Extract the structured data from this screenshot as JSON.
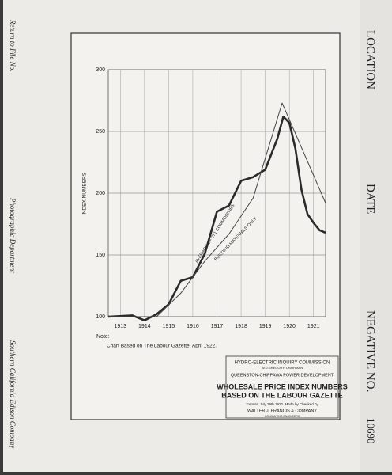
{
  "chart_data": {
    "type": "line",
    "y_label": "INDEX NUMBERS",
    "xlim": [
      1913,
      1922
    ],
    "xticks": [
      {
        "value": 1913.5,
        "label": "1913"
      },
      {
        "value": 1914.5,
        "label": "1914"
      },
      {
        "value": 1915.5,
        "label": "1915"
      },
      {
        "value": 1916.5,
        "label": "1916"
      },
      {
        "value": 1917.5,
        "label": "1917"
      },
      {
        "value": 1918.5,
        "label": "1918"
      },
      {
        "value": 1919.5,
        "label": "1919"
      },
      {
        "value": 1920.5,
        "label": "1920"
      },
      {
        "value": 1921.5,
        "label": "1921"
      }
    ],
    "ylim": [
      100,
      300
    ],
    "yticks": [
      100,
      150,
      200,
      250,
      300
    ],
    "grid": true,
    "series": [
      {
        "name": "AVERAGE OF 271 COMMODITIES",
        "color": "#2a2a2a",
        "width": 2.6,
        "x": [
          1913,
          1914,
          1914.5,
          1915,
          1915.5,
          1916,
          1916.5,
          1917,
          1917.5,
          1918,
          1918.5,
          1919,
          1919.5,
          1920,
          1920.25,
          1920.5,
          1920.75,
          1921,
          1921.25,
          1921.5,
          1921.75,
          1922
        ],
        "values": [
          100,
          101,
          97,
          102,
          110,
          129,
          132,
          151,
          185,
          190,
          210,
          213,
          219,
          244,
          262,
          257,
          236,
          203,
          183,
          176,
          170,
          168
        ]
      },
      {
        "name": "BUILDING MATERIALS ONLY",
        "color": "#444444",
        "width": 1,
        "x": [
          1913,
          1914,
          1915,
          1916,
          1917,
          1918,
          1919,
          1920.2,
          1922
        ],
        "values": [
          100,
          100,
          100,
          119,
          145,
          167,
          196,
          273,
          192
        ]
      }
    ],
    "note": "Note:",
    "note_text": "Chart Based on The Labour Gazette, April 1922."
  },
  "title_block": {
    "lines": [
      "HYDRO-ELECTRIC INQUIRY COMMISSION",
      "W.D.GREGORY, CHAIRMAN",
      "QUEENSTON-CHIPPAWA POWER DEVELOPMENT",
      "WHOLESALE PRICE INDEX NUMBERS",
      "BASED ON THE LABOUR GAZETTE",
      "Toronto, July 29th 1922. Made by Checked by",
      "WALTER J. FRANCIS & COMPANY",
      "CONSULTING ENGINEERS"
    ]
  },
  "margin": {
    "left": [
      "Return to File No.",
      "Photographic Department",
      "Southern California Edison Company"
    ],
    "right": [
      "LOCATION",
      "DATE",
      "NEGATIVE NO.",
      "10690"
    ]
  }
}
